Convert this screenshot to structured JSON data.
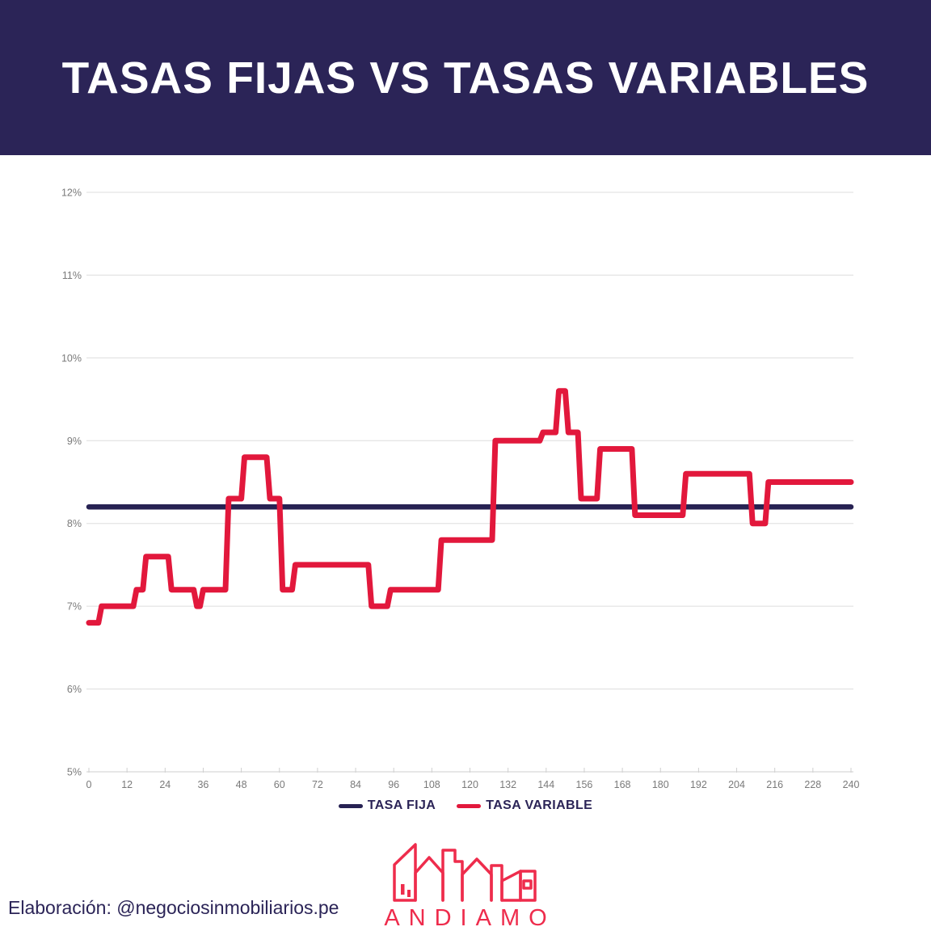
{
  "header": {
    "title": "TASAS FIJAS VS TASAS VARIABLES",
    "background_color": "#2B2457",
    "text_color": "#FFFFFF"
  },
  "footer": {
    "credit": "Elaboración: @negociosinmobiliarios.pe"
  },
  "logo": {
    "wordmark": "ANDIAMO",
    "color": "#EE2C4C",
    "icon": "city-skyline-icon"
  },
  "chart_data": {
    "type": "line",
    "title": "TASAS FIJAS VS TASAS VARIABLES",
    "xlabel": "",
    "ylabel": "",
    "x_unit": "months",
    "xlim": [
      0,
      240
    ],
    "ylim": [
      5,
      12
    ],
    "x_ticks": [
      0,
      12,
      24,
      36,
      48,
      60,
      72,
      84,
      96,
      108,
      120,
      132,
      144,
      156,
      168,
      180,
      192,
      204,
      216,
      228,
      240
    ],
    "y_ticks": [
      5,
      6,
      7,
      8,
      9,
      10,
      11,
      12
    ],
    "y_tick_suffix": "%",
    "grid": "horizontal",
    "legend_position": "bottom-center",
    "gridline_color": "#DDDDDD",
    "axis_color": "#CFCFCF",
    "tick_label_color": "#7A7A7A",
    "series": [
      {
        "name": "TASA FIJA",
        "color": "#272253",
        "points": [
          [
            0,
            8.2
          ],
          [
            240,
            8.2
          ]
        ]
      },
      {
        "name": "TASA VARIABLE",
        "color": "#E2183C",
        "points": [
          [
            0,
            6.8
          ],
          [
            3,
            6.8
          ],
          [
            4,
            7.0
          ],
          [
            14,
            7.0
          ],
          [
            15,
            7.2
          ],
          [
            17,
            7.2
          ],
          [
            18,
            7.6
          ],
          [
            25,
            7.6
          ],
          [
            26,
            7.2
          ],
          [
            33,
            7.2
          ],
          [
            34,
            7.0
          ],
          [
            35,
            7.0
          ],
          [
            36,
            7.2
          ],
          [
            43,
            7.2
          ],
          [
            44,
            8.3
          ],
          [
            48,
            8.3
          ],
          [
            49,
            8.8
          ],
          [
            56,
            8.8
          ],
          [
            57,
            8.3
          ],
          [
            60,
            8.3
          ],
          [
            61,
            7.2
          ],
          [
            64,
            7.2
          ],
          [
            65,
            7.5
          ],
          [
            88,
            7.5
          ],
          [
            89,
            7.0
          ],
          [
            94,
            7.0
          ],
          [
            95,
            7.2
          ],
          [
            110,
            7.2
          ],
          [
            111,
            7.8
          ],
          [
            127,
            7.8
          ],
          [
            128,
            9.0
          ],
          [
            142,
            9.0
          ],
          [
            143,
            9.1
          ],
          [
            147,
            9.1
          ],
          [
            148,
            9.6
          ],
          [
            150,
            9.6
          ],
          [
            151,
            9.1
          ],
          [
            154,
            9.1
          ],
          [
            155,
            8.3
          ],
          [
            160,
            8.3
          ],
          [
            161,
            8.9
          ],
          [
            171,
            8.9
          ],
          [
            172,
            8.1
          ],
          [
            187,
            8.1
          ],
          [
            188,
            8.6
          ],
          [
            208,
            8.6
          ],
          [
            209,
            8.0
          ],
          [
            213,
            8.0
          ],
          [
            214,
            8.5
          ],
          [
            240,
            8.5
          ]
        ]
      }
    ]
  }
}
